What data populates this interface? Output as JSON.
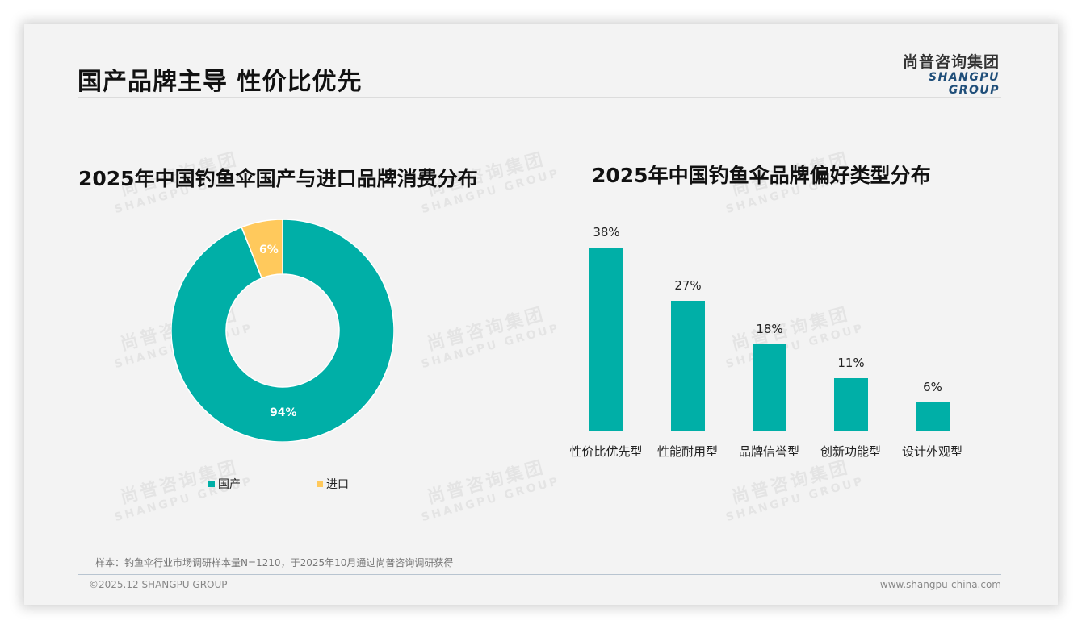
{
  "header": {
    "title": "国产品牌主导 性价比优先",
    "logo_cn": "尚普咨询集团",
    "logo_en": "SHANGPU GROUP"
  },
  "watermark": {
    "cn": "尚普咨询集团",
    "en": "SHANGPU GROUP"
  },
  "colors": {
    "teal": "#00afa7",
    "yellow": "#ffc95c",
    "title_blue": "#1f4e79"
  },
  "chart_data": [
    {
      "type": "pie",
      "variant": "donut",
      "title": "2025年中国钓鱼伞国产与进口品牌消费分布",
      "categories": [
        "国产",
        "进口"
      ],
      "values": [
        94,
        6
      ],
      "labels": [
        "94%",
        "6%"
      ],
      "colors": [
        "#00afa7",
        "#ffc95c"
      ],
      "legend_position": "bottom",
      "legend": [
        "国产",
        "进口"
      ]
    },
    {
      "type": "bar",
      "title": "2025年中国钓鱼伞品牌偏好类型分布",
      "categories": [
        "性价比优先型",
        "性能耐用型",
        "品牌信誉型",
        "创新功能型",
        "设计外观型"
      ],
      "values": [
        38,
        27,
        18,
        11,
        6
      ],
      "labels": [
        "38%",
        "27%",
        "18%",
        "11%",
        "6%"
      ],
      "xlabel": "",
      "ylabel": "",
      "ylim": [
        0,
        40
      ],
      "grid": false,
      "color": "#00afa7"
    }
  ],
  "footer": {
    "source": "样本：钓鱼伞行业市场调研样本量N=1210，于2025年10月通过尚普咨询调研获得",
    "copyright": "©2025.12 SHANGPU GROUP",
    "website": "www.shangpu-china.com"
  }
}
